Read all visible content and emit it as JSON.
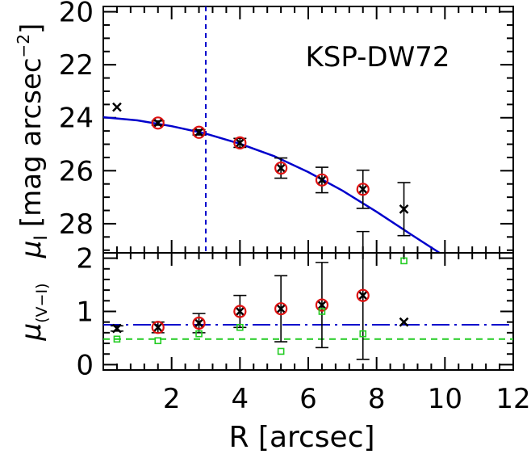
{
  "chart_data": [
    {
      "type": "scatter",
      "panel": "top",
      "annotation": "KSP-DW72",
      "ylabel": "μ_I [mag arcsec⁻²]",
      "ylabel_main": "μ",
      "ylabel_sub": "I",
      "ylabel_unit": "[mag arcsec",
      "ylabel_exp": "−2",
      "ylabel_close": "]",
      "ylim": [
        29.1,
        19.8
      ],
      "y_inverted": true,
      "yticks": [
        20,
        22,
        24,
        26,
        28
      ],
      "xlim": [
        0,
        12
      ],
      "vline_x": 3.0,
      "fit_curve": [
        [
          0.0,
          23.98
        ],
        [
          1.0,
          24.1
        ],
        [
          2.0,
          24.32
        ],
        [
          3.0,
          24.6
        ],
        [
          4.0,
          24.98
        ],
        [
          5.0,
          25.45
        ],
        [
          6.0,
          26.05
        ],
        [
          7.0,
          26.75
        ],
        [
          8.0,
          27.55
        ],
        [
          9.0,
          28.4
        ],
        [
          10.2,
          29.4
        ]
      ],
      "series": [
        {
          "name": "",
          "marker": "red-circle-cross",
          "points": [
            {
              "x": 1.6,
              "y": 24.2,
              "err": 0.08
            },
            {
              "x": 2.8,
              "y": 24.55,
              "err": 0.1
            },
            {
              "x": 4.0,
              "y": 24.95,
              "err": 0.17
            },
            {
              "x": 5.2,
              "y": 25.9,
              "err": 0.38
            },
            {
              "x": 6.4,
              "y": 26.35,
              "err": 0.48
            },
            {
              "x": 7.6,
              "y": 26.7,
              "err": 0.72
            }
          ]
        },
        {
          "name": "",
          "marker": "black-cross",
          "points": [
            {
              "x": 0.4,
              "y": 23.6,
              "err": 0
            },
            {
              "x": 8.8,
              "y": 27.45,
              "err": 1.0
            }
          ]
        }
      ]
    },
    {
      "type": "scatter",
      "panel": "bottom",
      "ylabel": "μ_(V−I)",
      "ylabel_main": "μ",
      "ylabel_sub": "(V−I)",
      "ylim": [
        -0.1,
        2.1
      ],
      "yticks": [
        0,
        1,
        2
      ],
      "xlabel": "R [arcsec]",
      "xlim": [
        0,
        12
      ],
      "xticks": [
        2,
        4,
        6,
        8,
        10,
        12
      ],
      "hlines": [
        {
          "y": 0.75,
          "color": "#0000cc",
          "style": "dash-dot"
        },
        {
          "y": 0.48,
          "color": "#22cc22",
          "style": "dash"
        }
      ],
      "series": [
        {
          "name": "",
          "marker": "red-circle-cross",
          "points": [
            {
              "x": 1.6,
              "y": 0.7,
              "err": 0.1
            },
            {
              "x": 2.8,
              "y": 0.78,
              "err": 0.18
            },
            {
              "x": 4.0,
              "y": 1.0,
              "err": 0.3
            },
            {
              "x": 5.2,
              "y": 1.05,
              "err": 0.62
            },
            {
              "x": 6.4,
              "y": 1.12,
              "err": 0.8
            },
            {
              "x": 7.6,
              "y": 1.3,
              "err": 1.2
            }
          ]
        },
        {
          "name": "",
          "marker": "black-cross",
          "points": [
            {
              "x": 0.4,
              "y": 0.68,
              "err": 0.05
            },
            {
              "x": 8.8,
              "y": 0.8,
              "err": 0
            }
          ]
        },
        {
          "name": "",
          "marker": "green-square",
          "points": [
            {
              "x": 0.4,
              "y": 0.48
            },
            {
              "x": 1.6,
              "y": 0.45
            },
            {
              "x": 2.8,
              "y": 0.58
            },
            {
              "x": 4.0,
              "y": 0.7
            },
            {
              "x": 5.2,
              "y": 0.25
            },
            {
              "x": 6.4,
              "y": 1.0
            },
            {
              "x": 7.6,
              "y": 0.58
            },
            {
              "x": 8.8,
              "y": 1.95
            }
          ]
        }
      ]
    }
  ],
  "colors": {
    "red": "#dd1111",
    "blue": "#0000cc",
    "green": "#22cc22",
    "black": "#000000"
  }
}
